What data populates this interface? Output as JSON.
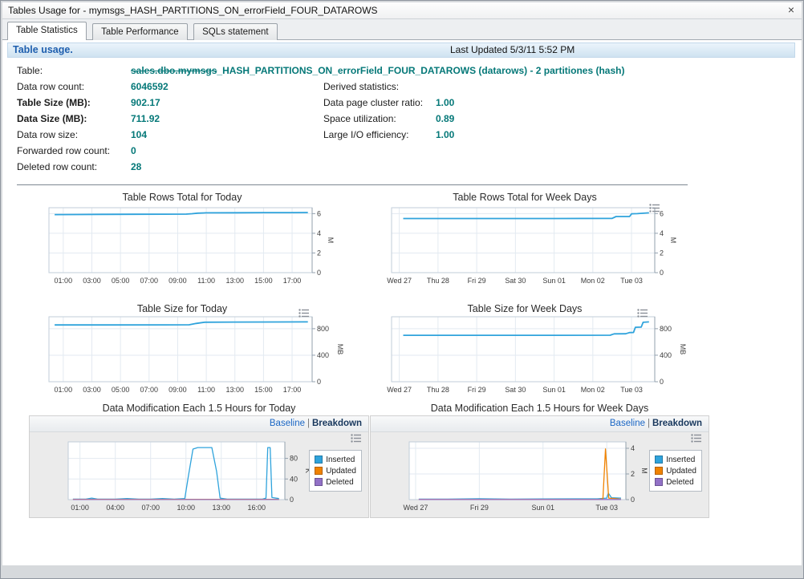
{
  "window": {
    "title": "Tables Usage for - mymsgs_HASH_PARTITIONS_ON_errorField_FOUR_DATAROWS",
    "close_glyph": "×"
  },
  "tabs": [
    {
      "label": "Table Statistics"
    },
    {
      "label": "Table Performance"
    },
    {
      "label": "SQLs statement"
    }
  ],
  "header": {
    "title": "Table usage.",
    "last_updated": "Last Updated 5/3/11 5:52 PM"
  },
  "stats": {
    "table_label": "Table:",
    "table_value_struck": "sales.dbo.mymsgs",
    "table_value_rest": "_HASH_PARTITIONS_ON_errorField_FOUR_DATAROWS (datarows) - 2 partitiones (hash)",
    "rows_left": [
      {
        "label": "Data row count:",
        "value": "6046592"
      },
      {
        "label": "Table Size (MB):",
        "value": "902.17"
      },
      {
        "label": "Data Size (MB):",
        "value": "711.92"
      },
      {
        "label": "Data row size:",
        "value": "104"
      },
      {
        "label": "Forwarded row count:",
        "value": "0"
      },
      {
        "label": "Deleted row count:",
        "value": "28"
      }
    ],
    "derived_title": "Derived statistics:",
    "rows_right": [
      {
        "label": "Data page cluster ratio:",
        "value": "1.00"
      },
      {
        "label": "Space utilization:",
        "value": "0.89"
      },
      {
        "label": "Large I/O efficiency:",
        "value": "1.00"
      }
    ]
  },
  "panel_links": {
    "baseline": "Baseline",
    "separator": "|",
    "breakdown": "Breakdown"
  },
  "colors": {
    "line_blue": "#2fa3dc",
    "updated_orange": "#f08200",
    "deleted_purple": "#9271c6",
    "value_teal": "#057878"
  },
  "chart_data": [
    {
      "type": "line",
      "title": "Table Rows Total for Today",
      "y_label": "M",
      "y_ticks": [
        0,
        2,
        4,
        6
      ],
      "y_max": 6.6,
      "x_min": 0,
      "x_max": 18.4,
      "x_ticks": [
        {
          "x": 1,
          "label": "01:00"
        },
        {
          "x": 3,
          "label": "03:00"
        },
        {
          "x": 5,
          "label": "05:00"
        },
        {
          "x": 7,
          "label": "07:00"
        },
        {
          "x": 9,
          "label": "09:00"
        },
        {
          "x": 11,
          "label": "11:00"
        },
        {
          "x": 13,
          "label": "13:00"
        },
        {
          "x": 15,
          "label": "15:00"
        },
        {
          "x": 17,
          "label": "17:00"
        }
      ],
      "series": [
        {
          "name": "Table rows",
          "color": "#2fa3dc",
          "in_legend": false,
          "points": [
            [
              0.4,
              5.9
            ],
            [
              2,
              5.91
            ],
            [
              4,
              5.92
            ],
            [
              6,
              5.93
            ],
            [
              8,
              5.94
            ],
            [
              9.6,
              5.95
            ],
            [
              10.0,
              5.99
            ],
            [
              10.4,
              6.05
            ],
            [
              11,
              6.08
            ],
            [
              13,
              6.09
            ],
            [
              15,
              6.1
            ],
            [
              17,
              6.1
            ],
            [
              18.1,
              6.11
            ]
          ]
        }
      ]
    },
    {
      "type": "line",
      "title": "Table Rows Total for Week Days",
      "menu_icon": true,
      "y_label": "M",
      "y_ticks": [
        0,
        2,
        4,
        6
      ],
      "y_max": 6.6,
      "x_min": -0.2,
      "x_max": 6.6,
      "x_ticks": [
        {
          "x": 0,
          "label": "Wed 27"
        },
        {
          "x": 1,
          "label": "Thu 28"
        },
        {
          "x": 2,
          "label": "Fri 29"
        },
        {
          "x": 3,
          "label": "Sat 30"
        },
        {
          "x": 4,
          "label": "Sun 01"
        },
        {
          "x": 5,
          "label": "Mon 02"
        },
        {
          "x": 6,
          "label": "Tue 03"
        }
      ],
      "series": [
        {
          "name": "Table rows",
          "color": "#2fa3dc",
          "in_legend": false,
          "points": [
            [
              0.1,
              5.5
            ],
            [
              2,
              5.5
            ],
            [
              4,
              5.5
            ],
            [
              5.5,
              5.52
            ],
            [
              5.6,
              5.7
            ],
            [
              5.95,
              5.7
            ],
            [
              6.0,
              5.98
            ],
            [
              6.15,
              6.0
            ],
            [
              6.45,
              6.08
            ]
          ]
        }
      ]
    },
    {
      "type": "line",
      "title": "Table Size for Today",
      "menu_icon": true,
      "y_label": "MB",
      "y_ticks": [
        0,
        400,
        800
      ],
      "y_max": 980,
      "x_min": 0,
      "x_max": 18.4,
      "x_ticks": [
        {
          "x": 1,
          "label": "01:00"
        },
        {
          "x": 3,
          "label": "03:00"
        },
        {
          "x": 5,
          "label": "05:00"
        },
        {
          "x": 7,
          "label": "07:00"
        },
        {
          "x": 9,
          "label": "09:00"
        },
        {
          "x": 11,
          "label": "11:00"
        },
        {
          "x": 13,
          "label": "13:00"
        },
        {
          "x": 15,
          "label": "15:00"
        },
        {
          "x": 17,
          "label": "17:00"
        }
      ],
      "series": [
        {
          "name": "Table size",
          "color": "#2fa3dc",
          "in_legend": false,
          "points": [
            [
              0.4,
              856
            ],
            [
              4,
              857
            ],
            [
              8,
              858
            ],
            [
              9.8,
              859
            ],
            [
              10.3,
              880
            ],
            [
              10.9,
              898
            ],
            [
              13,
              900
            ],
            [
              16,
              901
            ],
            [
              18.1,
              902
            ]
          ]
        }
      ]
    },
    {
      "type": "line",
      "title": "Table Size for Week Days",
      "menu_icon": true,
      "y_label": "MB",
      "y_ticks": [
        0,
        400,
        800
      ],
      "y_max": 980,
      "x_min": -0.2,
      "x_max": 6.6,
      "x_ticks": [
        {
          "x": 0,
          "label": "Wed 27"
        },
        {
          "x": 1,
          "label": "Thu 28"
        },
        {
          "x": 2,
          "label": "Fri 29"
        },
        {
          "x": 3,
          "label": "Sat 30"
        },
        {
          "x": 4,
          "label": "Sun 01"
        },
        {
          "x": 5,
          "label": "Mon 02"
        },
        {
          "x": 6,
          "label": "Tue 03"
        }
      ],
      "series": [
        {
          "name": "Table size",
          "color": "#2fa3dc",
          "in_legend": false,
          "points": [
            [
              0.1,
              700
            ],
            [
              2,
              700
            ],
            [
              4,
              701
            ],
            [
              5.45,
              702
            ],
            [
              5.55,
              722
            ],
            [
              5.85,
              723
            ],
            [
              5.95,
              742
            ],
            [
              6.05,
              743
            ],
            [
              6.1,
              822
            ],
            [
              6.25,
              824
            ],
            [
              6.3,
              896
            ],
            [
              6.45,
              902
            ]
          ]
        }
      ]
    },
    {
      "type": "line",
      "title": "Data Modification Each 1.5 Hours for Today",
      "menu_icon": true,
      "y_label": "K",
      "y_ticks": [
        0,
        40,
        80
      ],
      "y_max": 112,
      "x_min": 0,
      "x_max": 18.4,
      "x_ticks": [
        {
          "x": 1,
          "label": "01:00"
        },
        {
          "x": 4,
          "label": "04:00"
        },
        {
          "x": 7,
          "label": "07:00"
        },
        {
          "x": 10,
          "label": "10:00"
        },
        {
          "x": 13,
          "label": "13:00"
        },
        {
          "x": 16,
          "label": "16:00"
        }
      ],
      "series": [
        {
          "name": "Inserted",
          "color": "#2fa3dc",
          "in_legend": true,
          "points": [
            [
              0.4,
              1
            ],
            [
              1.5,
              1
            ],
            [
              2,
              3
            ],
            [
              2.5,
              1
            ],
            [
              4,
              1
            ],
            [
              5,
              2
            ],
            [
              6,
              1
            ],
            [
              7,
              1
            ],
            [
              8,
              2
            ],
            [
              9,
              1
            ],
            [
              9.9,
              2
            ],
            [
              10.2,
              45
            ],
            [
              10.6,
              98
            ],
            [
              11,
              101
            ],
            [
              12.2,
              101
            ],
            [
              12.6,
              55
            ],
            [
              12.9,
              3
            ],
            [
              13.5,
              1
            ],
            [
              16.5,
              1
            ],
            [
              16.8,
              3
            ],
            [
              16.95,
              101
            ],
            [
              17.15,
              101
            ],
            [
              17.3,
              4
            ],
            [
              17.9,
              2
            ]
          ]
        },
        {
          "name": "Updated",
          "color": "#f08200",
          "in_legend": true,
          "points": [
            [
              0.4,
              0.6
            ],
            [
              17.9,
              0.6
            ]
          ]
        },
        {
          "name": "Deleted",
          "color": "#9271c6",
          "in_legend": true,
          "points": [
            [
              0.4,
              0.2
            ],
            [
              17.9,
              0.2
            ]
          ]
        }
      ]
    },
    {
      "type": "line",
      "title": "Data Modification Each 1.5 Hours for Week Days",
      "menu_icon": true,
      "y_label": "M",
      "y_ticks": [
        0,
        2,
        4
      ],
      "y_max": 4.5,
      "x_min": -0.2,
      "x_max": 6.6,
      "x_ticks": [
        {
          "x": 0,
          "label": "Wed 27"
        },
        {
          "x": 2,
          "label": "Fri 29"
        },
        {
          "x": 4,
          "label": "Sun 01"
        },
        {
          "x": 6,
          "label": "Tue 03"
        }
      ],
      "series": [
        {
          "name": "Inserted",
          "color": "#2fa3dc",
          "in_legend": true,
          "points": [
            [
              0.1,
              0.04
            ],
            [
              1,
              0.04
            ],
            [
              2,
              0.07
            ],
            [
              3,
              0.04
            ],
            [
              4,
              0.05
            ],
            [
              5,
              0.06
            ],
            [
              5.7,
              0.06
            ],
            [
              5.9,
              0.1
            ],
            [
              6.0,
              0.12
            ],
            [
              6.05,
              0.5
            ],
            [
              6.15,
              0.15
            ],
            [
              6.45,
              0.12
            ]
          ]
        },
        {
          "name": "Updated",
          "color": "#f08200",
          "in_legend": true,
          "points": [
            [
              0.1,
              0.02
            ],
            [
              5.75,
              0.02
            ],
            [
              5.88,
              0.06
            ],
            [
              5.96,
              3.95
            ],
            [
              6.06,
              0.12
            ],
            [
              6.45,
              0.03
            ]
          ]
        },
        {
          "name": "Deleted",
          "color": "#9271c6",
          "in_legend": true,
          "points": [
            [
              0.1,
              0.01
            ],
            [
              6.45,
              0.01
            ]
          ]
        }
      ]
    }
  ]
}
